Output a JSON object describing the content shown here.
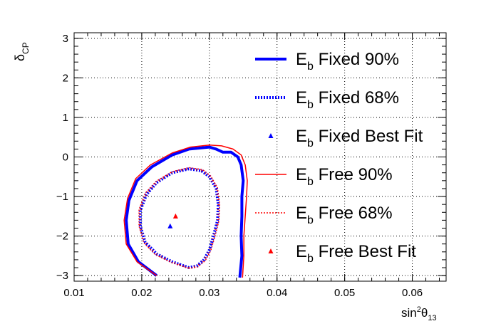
{
  "chart_data": {
    "type": "contour",
    "x_label": {
      "main": "sin",
      "sup": "2",
      "sym": "θ",
      "sub": "13"
    },
    "y_label": {
      "main": "δ",
      "sub": "CP"
    },
    "xlim": [
      0.01,
      0.065
    ],
    "ylim": [
      -3.1416,
      3.1416
    ],
    "x_ticks": [
      0.01,
      0.02,
      0.03,
      0.04,
      0.05,
      0.06
    ],
    "x_tick_labels": [
      "0.01",
      "0.02",
      "0.03",
      "0.04",
      "0.05",
      "0.06"
    ],
    "y_ticks": [
      -3,
      -2,
      -1,
      0,
      1,
      2,
      3
    ],
    "y_tick_labels": [
      "−3",
      "−2",
      "−1",
      "0",
      "1",
      "2",
      "3"
    ],
    "grid": true,
    "legend_position": "right",
    "colors": {
      "fixed": "#0000ff",
      "free": "#ff0000",
      "fixed_68_dots": "#dd0000",
      "free_68_dots": "#0000ff"
    },
    "series": [
      {
        "name": "E_b Fixed 90%",
        "legend": {
          "main": "E",
          "sub": "b",
          "rest": " Fixed 90%"
        },
        "style": "solid-thick",
        "points": [
          [
            0.0222,
            -3.0
          ],
          [
            0.0195,
            -2.65
          ],
          [
            0.018,
            -2.2
          ],
          [
            0.0177,
            -1.6
          ],
          [
            0.0181,
            -1.1
          ],
          [
            0.0193,
            -0.6
          ],
          [
            0.0215,
            -0.25
          ],
          [
            0.0245,
            0.05
          ],
          [
            0.027,
            0.2
          ],
          [
            0.03,
            0.25
          ],
          [
            0.031,
            0.2
          ],
          [
            0.032,
            0.12
          ],
          [
            0.0332,
            0.12
          ],
          [
            0.0342,
            0.0
          ],
          [
            0.0347,
            -0.2
          ],
          [
            0.035,
            -0.6
          ],
          [
            0.0348,
            -1.0
          ],
          [
            0.0348,
            -1.5
          ],
          [
            0.0347,
            -2.0
          ],
          [
            0.0348,
            -2.5
          ],
          [
            0.0345,
            -3.05
          ]
        ]
      },
      {
        "name": "E_b Fixed 68%",
        "legend": {
          "main": "E",
          "sub": "b",
          "rest": " Fixed 68%"
        },
        "style": "dotted-thick",
        "points": [
          [
            0.027,
            -2.8
          ],
          [
            0.0245,
            -2.65
          ],
          [
            0.0222,
            -2.45
          ],
          [
            0.0205,
            -2.15
          ],
          [
            0.0198,
            -1.75
          ],
          [
            0.0198,
            -1.35
          ],
          [
            0.0207,
            -0.95
          ],
          [
            0.0222,
            -0.65
          ],
          [
            0.0245,
            -0.4
          ],
          [
            0.027,
            -0.3
          ],
          [
            0.0288,
            -0.35
          ],
          [
            0.03,
            -0.5
          ],
          [
            0.031,
            -0.8
          ],
          [
            0.0313,
            -1.2
          ],
          [
            0.0312,
            -1.6
          ],
          [
            0.0306,
            -2.0
          ],
          [
            0.03,
            -2.35
          ],
          [
            0.0292,
            -2.6
          ],
          [
            0.0282,
            -2.75
          ],
          [
            0.027,
            -2.8
          ]
        ]
      },
      {
        "name": "E_b Fixed Best Fit",
        "legend": {
          "main": "E",
          "sub": "b",
          "rest": " Fixed Best Fit"
        },
        "style": "marker",
        "points": [
          [
            0.0242,
            -1.75
          ]
        ]
      },
      {
        "name": "E_b Free 90%",
        "legend": {
          "main": "E",
          "sub": "b",
          "rest": " Free 90%"
        },
        "style": "solid-thin",
        "points": [
          [
            0.0222,
            -3.0
          ],
          [
            0.0193,
            -2.65
          ],
          [
            0.0177,
            -2.2
          ],
          [
            0.0174,
            -1.6
          ],
          [
            0.0179,
            -1.05
          ],
          [
            0.0191,
            -0.55
          ],
          [
            0.0213,
            -0.2
          ],
          [
            0.0245,
            0.1
          ],
          [
            0.0272,
            0.25
          ],
          [
            0.03,
            0.3
          ],
          [
            0.0318,
            0.28
          ],
          [
            0.0335,
            0.2
          ],
          [
            0.0347,
            0.05
          ],
          [
            0.0353,
            -0.2
          ],
          [
            0.0356,
            -0.6
          ],
          [
            0.0355,
            -1.0
          ],
          [
            0.0353,
            -1.5
          ],
          [
            0.0351,
            -2.0
          ],
          [
            0.0351,
            -2.5
          ],
          [
            0.0349,
            -3.05
          ]
        ]
      },
      {
        "name": "E_b Free 68%",
        "legend": {
          "main": "E",
          "sub": "b",
          "rest": " Free 68%"
        },
        "style": "dotted-thin",
        "points": [
          [
            0.027,
            -2.82
          ],
          [
            0.0244,
            -2.67
          ],
          [
            0.022,
            -2.47
          ],
          [
            0.0203,
            -2.17
          ],
          [
            0.0196,
            -1.75
          ],
          [
            0.0196,
            -1.33
          ],
          [
            0.0205,
            -0.92
          ],
          [
            0.0221,
            -0.62
          ],
          [
            0.0245,
            -0.37
          ],
          [
            0.027,
            -0.27
          ],
          [
            0.029,
            -0.32
          ],
          [
            0.0302,
            -0.48
          ],
          [
            0.0312,
            -0.78
          ],
          [
            0.0315,
            -1.2
          ],
          [
            0.0314,
            -1.62
          ],
          [
            0.0308,
            -2.02
          ],
          [
            0.0302,
            -2.37
          ],
          [
            0.0294,
            -2.62
          ],
          [
            0.0283,
            -2.78
          ],
          [
            0.027,
            -2.82
          ]
        ]
      },
      {
        "name": "E_b Free Best Fit",
        "legend": {
          "main": "E",
          "sub": "b",
          "rest": " Free Best Fit"
        },
        "style": "marker",
        "points": [
          [
            0.025,
            -1.5
          ]
        ]
      }
    ]
  }
}
